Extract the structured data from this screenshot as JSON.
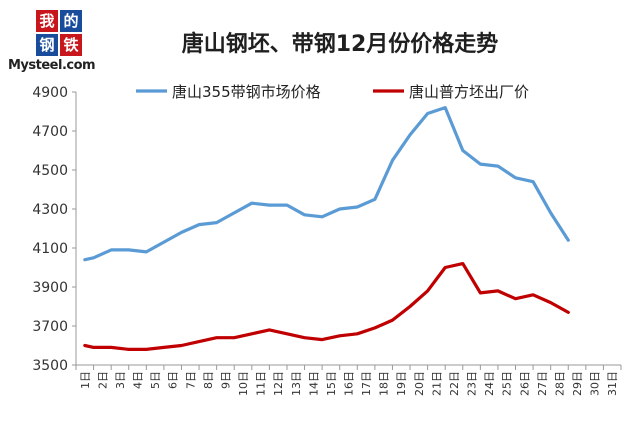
{
  "logo": {
    "chars": [
      "我",
      "的",
      "钢",
      "铁"
    ],
    "brand": "Mysteel.com",
    "colors": [
      "#c8161d",
      "#1a4c9c",
      "#1a4c9c",
      "#c8161d"
    ]
  },
  "chart_data": {
    "type": "line",
    "title": "唐山钢坯、带钢12月份价格走势",
    "xlabel": "",
    "ylabel": "",
    "categories": [
      "1日",
      "2日",
      "3日",
      "4日",
      "5日",
      "6日",
      "7日",
      "8日",
      "9日",
      "10日",
      "11日",
      "12日",
      "13日",
      "14日",
      "15日",
      "16日",
      "17日",
      "18日",
      "19日",
      "20日",
      "21日",
      "22日",
      "23日",
      "24日",
      "25日",
      "26日",
      "27日",
      "28日",
      "29日",
      "30日",
      "31日"
    ],
    "ylim": [
      3500,
      4900
    ],
    "yticks": [
      3500,
      3700,
      3900,
      4100,
      4300,
      4500,
      4700,
      4900
    ],
    "grid": false,
    "legend_position": "top",
    "series": [
      {
        "name": "唐山355带钢市场价格",
        "color": "#5b9bd5",
        "x": [
          0.5,
          1,
          2,
          3,
          4,
          5,
          6,
          7,
          8,
          9,
          10,
          11,
          12,
          13,
          14,
          15,
          16,
          17,
          18,
          19,
          20,
          21,
          22,
          23,
          24,
          25,
          26,
          27,
          28
        ],
        "values": [
          4040,
          4050,
          4090,
          4090,
          4080,
          4130,
          4180,
          4220,
          4230,
          4280,
          4330,
          4320,
          4320,
          4270,
          4260,
          4300,
          4310,
          4350,
          4550,
          4680,
          4790,
          4820,
          4600,
          4530,
          4520,
          4460,
          4440,
          4280,
          4140
        ]
      },
      {
        "name": "唐山普方坯出厂价",
        "color": "#c00000",
        "x": [
          0.5,
          1,
          2,
          3,
          4,
          5,
          6,
          7,
          8,
          9,
          10,
          11,
          12,
          13,
          14,
          15,
          16,
          17,
          18,
          19,
          20,
          21,
          22,
          23,
          24,
          25,
          26,
          27,
          28
        ],
        "values": [
          3600,
          3590,
          3590,
          3580,
          3580,
          3590,
          3600,
          3620,
          3640,
          3640,
          3660,
          3680,
          3660,
          3640,
          3630,
          3650,
          3660,
          3690,
          3730,
          3800,
          3880,
          4000,
          4020,
          3870,
          3880,
          3840,
          3860,
          3820,
          3770
        ]
      }
    ]
  }
}
